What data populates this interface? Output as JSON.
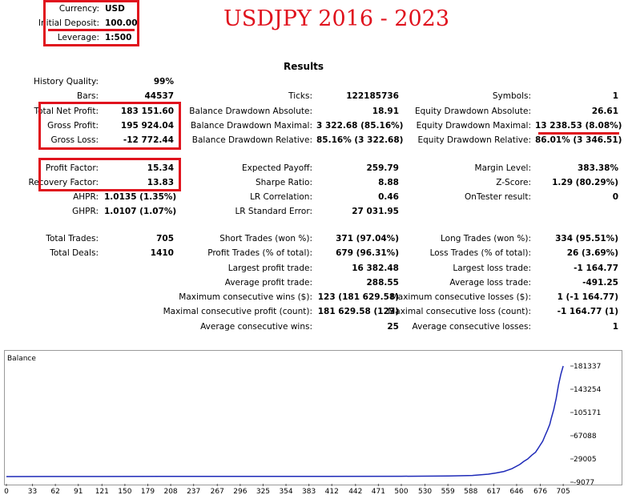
{
  "title": "USDJPY 2016 - 2023",
  "results_heading": "Results",
  "settings": [
    {
      "label": "Currency:",
      "value": "USD"
    },
    {
      "label": "Initial Deposit:",
      "value": "100.00"
    },
    {
      "label": "Leverage:",
      "value": "1:500"
    }
  ],
  "col1": [
    {
      "label": "History Quality:",
      "value": "99%"
    },
    {
      "label": "Bars:",
      "value": "44537"
    },
    {
      "label": "Total Net Profit:",
      "value": "183 151.60"
    },
    {
      "label": "Gross Profit:",
      "value": "195 924.04"
    },
    {
      "label": "Gross Loss:",
      "value": "-12 772.44"
    },
    {
      "label": "Profit Factor:",
      "value": "15.34"
    },
    {
      "label": "Recovery Factor:",
      "value": "13.83"
    },
    {
      "label": "AHPR:",
      "value": "1.0135 (1.35%)"
    },
    {
      "label": "GHPR:",
      "value": "1.0107 (1.07%)"
    },
    {
      "label": "Total Trades:",
      "value": "705"
    },
    {
      "label": "Total Deals:",
      "value": "1410"
    }
  ],
  "col2": [
    {
      "label": "Ticks:",
      "value": "122185736"
    },
    {
      "label": "Balance Drawdown Absolute:",
      "value": "18.91"
    },
    {
      "label": "Balance Drawdown Maximal:",
      "value": "3 322.68 (85.16%)"
    },
    {
      "label": "Balance Drawdown Relative:",
      "value": "85.16% (3 322.68)"
    },
    {
      "label": "Expected Payoff:",
      "value": "259.79"
    },
    {
      "label": "Sharpe Ratio:",
      "value": "8.88"
    },
    {
      "label": "LR Correlation:",
      "value": "0.46"
    },
    {
      "label": "LR Standard Error:",
      "value": "27 031.95"
    },
    {
      "label": "Short Trades (won %):",
      "value": "371 (97.04%)"
    },
    {
      "label": "Profit Trades (% of total):",
      "value": "679 (96.31%)"
    },
    {
      "label": "Largest profit trade:",
      "value": "16 382.48"
    },
    {
      "label": "Average profit trade:",
      "value": "288.55"
    },
    {
      "label": "Maximum consecutive wins ($):",
      "value": "123 (181 629.58)"
    },
    {
      "label": "Maximal consecutive profit (count):",
      "value": "181 629.58 (123)"
    },
    {
      "label": "Average consecutive wins:",
      "value": "25"
    }
  ],
  "col3": [
    {
      "label": "Symbols:",
      "value": "1"
    },
    {
      "label": "Equity Drawdown Absolute:",
      "value": "26.61"
    },
    {
      "label": "Equity Drawdown Maximal:",
      "value": "13 238.53 (8.08%)"
    },
    {
      "label": "Equity Drawdown Relative:",
      "value": "86.01% (3 346.51)"
    },
    {
      "label": "Margin Level:",
      "value": "383.38%"
    },
    {
      "label": "Z-Score:",
      "value": "1.29 (80.29%)"
    },
    {
      "label": "OnTester result:",
      "value": "0"
    },
    {
      "label": "Long Trades (won %):",
      "value": "334 (95.51%)"
    },
    {
      "label": "Loss Trades (% of total):",
      "value": "26 (3.69%)"
    },
    {
      "label": "Largest loss trade:",
      "value": "-1 164.77"
    },
    {
      "label": "Average loss trade:",
      "value": "-491.25"
    },
    {
      "label": "Maximum consecutive losses ($):",
      "value": "1 (-1 164.77)"
    },
    {
      "label": "Maximal consecutive loss (count):",
      "value": "-1 164.77 (1)"
    },
    {
      "label": "Average consecutive losses:",
      "value": "1"
    }
  ],
  "chart_data": {
    "type": "line",
    "title": "Balance",
    "xlabel": "",
    "ylabel": "",
    "x_ticks": [
      "0",
      "33",
      "62",
      "91",
      "121",
      "150",
      "179",
      "208",
      "237",
      "267",
      "296",
      "325",
      "354",
      "383",
      "412",
      "442",
      "471",
      "500",
      "530",
      "559",
      "588",
      "617",
      "646",
      "676",
      "705"
    ],
    "y_ticks": [
      "181337",
      "143254",
      "105171",
      "67088",
      "29005",
      "-9077"
    ],
    "ylim": [
      -9077,
      181337
    ],
    "xlim": [
      0,
      714
    ],
    "series": [
      {
        "color": "#1e2ab8",
        "x": [
          0,
          50,
          100,
          200,
          300,
          400,
          500,
          560,
          590,
          610,
          620,
          630,
          640,
          650,
          655,
          660,
          665,
          670,
          673,
          676,
          679,
          682,
          685,
          688,
          690,
          693,
          696,
          699,
          702,
          705
        ],
        "y": [
          100,
          300,
          250,
          400,
          500,
          550,
          650,
          1000,
          2000,
          4000,
          6000,
          8500,
          13000,
          20000,
          25000,
          29005,
          35000,
          40000,
          46000,
          52000,
          58000,
          67088,
          76000,
          86000,
          96000,
          110000,
          128000,
          150000,
          168000,
          181337
        ]
      }
    ],
    "line_color": "#1e2ab8",
    "grid": false
  },
  "colors": {
    "highlight": "#e0121d",
    "balance_line": "#1e2ab8"
  }
}
